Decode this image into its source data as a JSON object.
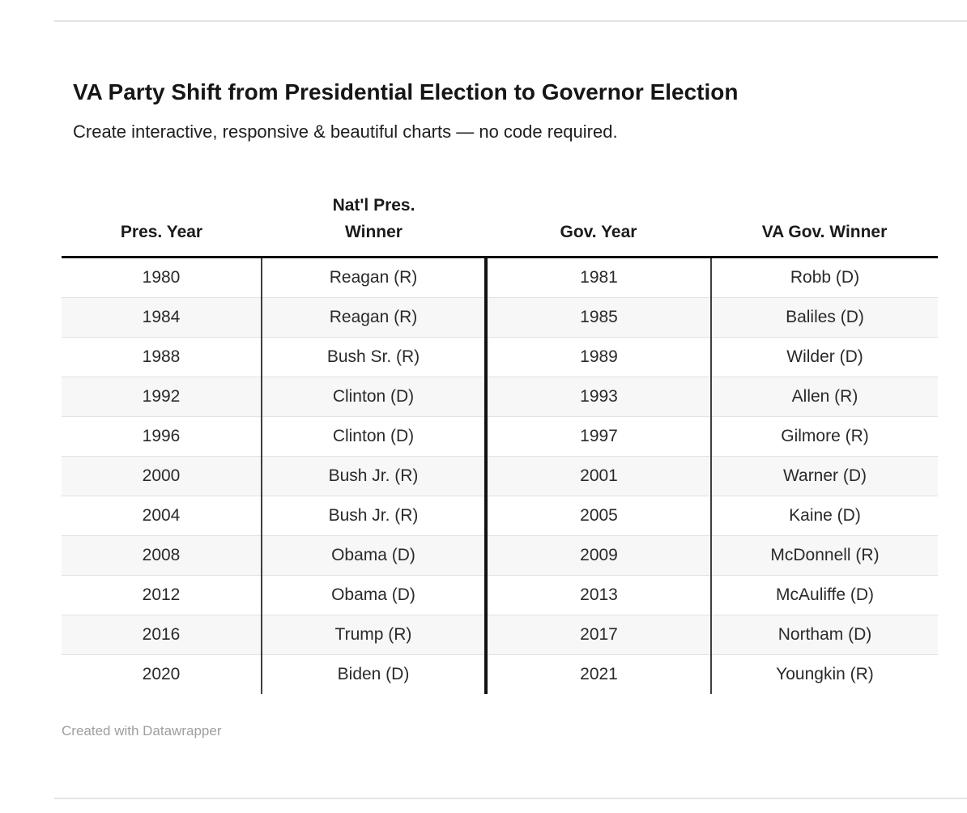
{
  "page": {
    "title": "VA Party Shift from Presidential Election to Governor Election",
    "subtitle": "Create interactive, responsive & beautiful charts — no code required.",
    "attribution": "Created with Datawrapper"
  },
  "table_display": {
    "column_labels": [
      "Pres. Year",
      "Nat'l Pres.\nWinner",
      "Gov. Year",
      "VA Gov. Winner"
    ]
  },
  "colors": {
    "header_rule": "#000000",
    "thick_center_divider": "#121212",
    "thin_column_divider": "#3f3f3f",
    "row_separator": "#e2e2e2",
    "alt_row_background": "#f7f7f7",
    "page_hairline": "#e3e3e3",
    "attribution_text": "#9e9e9e"
  },
  "chart_data": {
    "type": "table",
    "title": "VA Party Shift from Presidential Election to Governor Election",
    "subtitle": "Create interactive, responsive & beautiful charts — no code required.",
    "columns": [
      "Pres. Year",
      "Nat'l Pres. Winner",
      "Gov. Year",
      "VA Gov. Winner"
    ],
    "rows": [
      [
        "1980",
        "Reagan (R)",
        "1981",
        "Robb (D)"
      ],
      [
        "1984",
        "Reagan (R)",
        "1985",
        "Baliles (D)"
      ],
      [
        "1988",
        "Bush Sr. (R)",
        "1989",
        "Wilder (D)"
      ],
      [
        "1992",
        "Clinton (D)",
        "1993",
        "Allen (R)"
      ],
      [
        "1996",
        "Clinton (D)",
        "1997",
        "Gilmore (R)"
      ],
      [
        "2000",
        "Bush Jr. (R)",
        "2001",
        "Warner (D)"
      ],
      [
        "2004",
        "Bush Jr. (R)",
        "2005",
        "Kaine (D)"
      ],
      [
        "2008",
        "Obama (D)",
        "2009",
        "McDonnell (R)"
      ],
      [
        "2012",
        "Obama (D)",
        "2013",
        "McAuliffe (D)"
      ],
      [
        "2016",
        "Trump (R)",
        "2017",
        "Northam (D)"
      ],
      [
        "2020",
        "Biden (D)",
        "2021",
        "Youngkin (R)"
      ]
    ],
    "attribution": "Created with Datawrapper",
    "layout_hints": {
      "alternating_row_shading": true,
      "grid_vertical_dividers": true,
      "thick_divider_between_columns": [
        2,
        3
      ],
      "header_bottom_rule": true
    }
  }
}
